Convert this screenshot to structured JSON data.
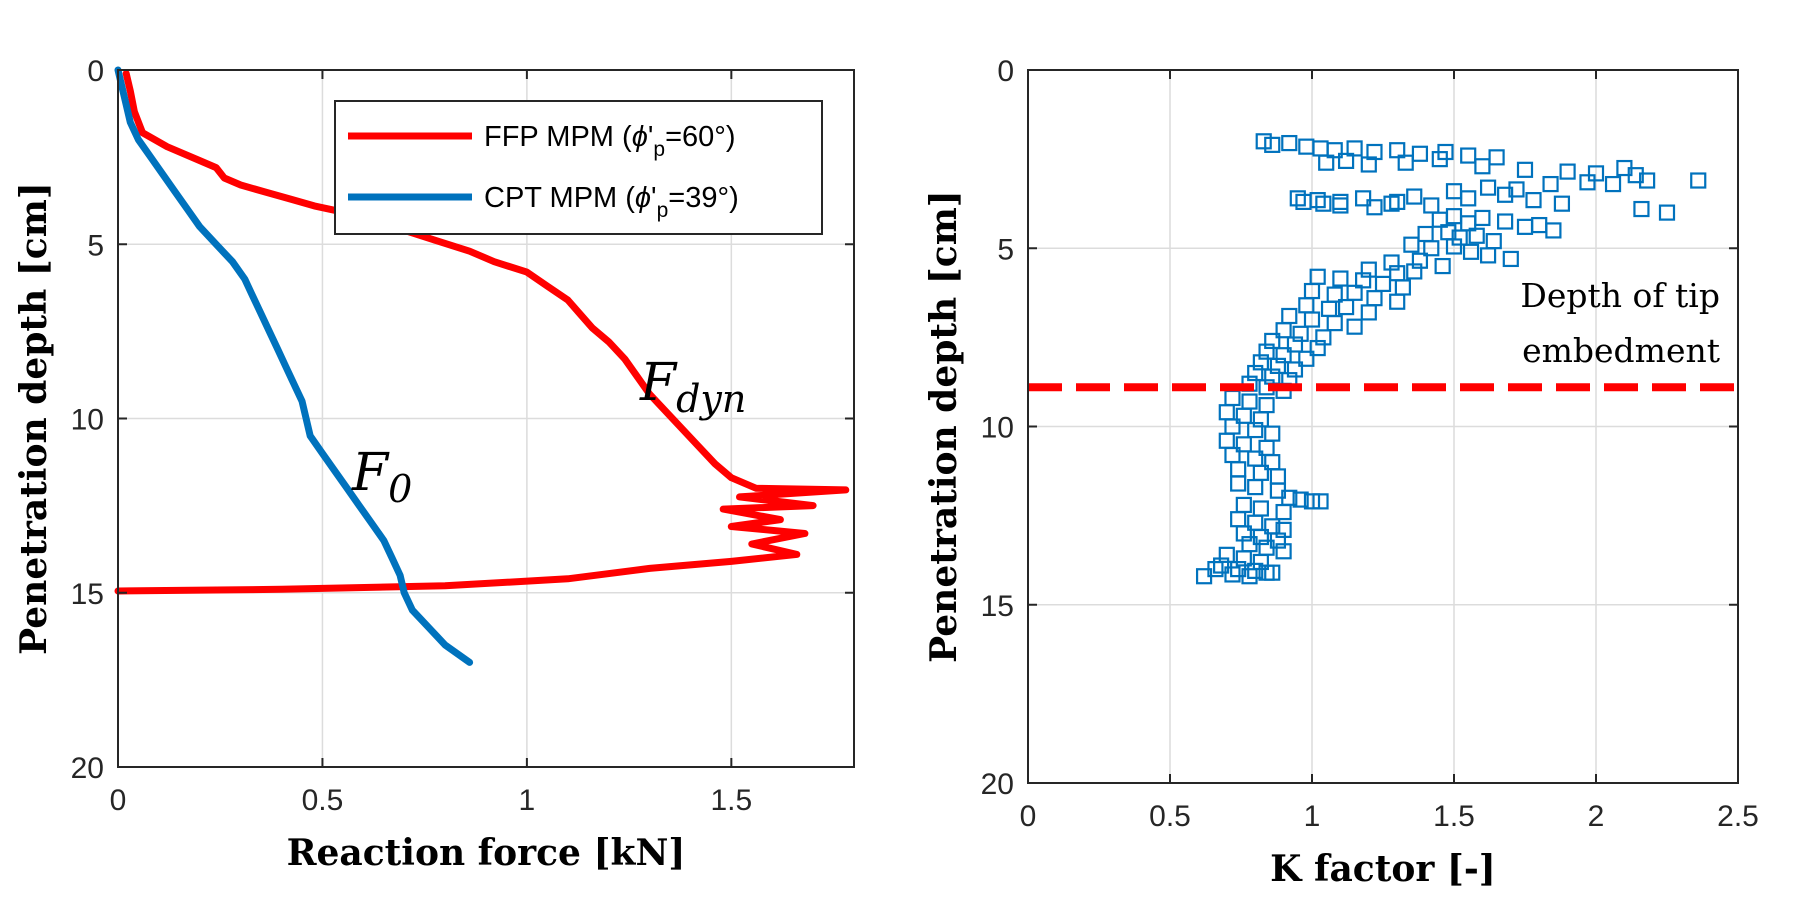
{
  "chart_data": [
    {
      "type": "line",
      "xlabel": "Reaction force [kN]",
      "ylabel": "Penetration depth [cm]",
      "xlim": [
        0,
        1.8
      ],
      "ylim": [
        0,
        20
      ],
      "y_reversed": true,
      "grid": true,
      "legend_position": "top-right",
      "x_ticks": [
        "0",
        "0.5",
        "1",
        "1.5"
      ],
      "y_ticks": [
        "0",
        "5",
        "10",
        "15",
        "20"
      ],
      "annotations": [
        {
          "base": "F",
          "sub": "dyn"
        },
        {
          "base": "F",
          "sub": "0"
        }
      ],
      "series": [
        {
          "name": "FFP MPM (ϕ'p=60°)",
          "legend_prefix": "FFP MPM (",
          "legend_phi": "ϕ",
          "legend_prime": "'",
          "legend_sub": "p",
          "legend_suffix": "=60°)",
          "color": "#ff0000",
          "points": [
            [
              0.02,
              0.1
            ],
            [
              0.03,
              0.6
            ],
            [
              0.04,
              1.2
            ],
            [
              0.06,
              1.8
            ],
            [
              0.12,
              2.2
            ],
            [
              0.2,
              2.6
            ],
            [
              0.24,
              2.8
            ],
            [
              0.26,
              3.1
            ],
            [
              0.3,
              3.3
            ],
            [
              0.36,
              3.5
            ],
            [
              0.42,
              3.7
            ],
            [
              0.48,
              3.9
            ],
            [
              0.56,
              4.1
            ],
            [
              0.62,
              4.3
            ],
            [
              0.7,
              4.6
            ],
            [
              0.78,
              4.9
            ],
            [
              0.86,
              5.2
            ],
            [
              0.92,
              5.5
            ],
            [
              1.0,
              5.8
            ],
            [
              1.05,
              6.2
            ],
            [
              1.1,
              6.6
            ],
            [
              1.13,
              7.0
            ],
            [
              1.16,
              7.4
            ],
            [
              1.2,
              7.8
            ],
            [
              1.24,
              8.3
            ],
            [
              1.27,
              8.8
            ],
            [
              1.3,
              9.3
            ],
            [
              1.34,
              9.8
            ],
            [
              1.38,
              10.3
            ],
            [
              1.42,
              10.8
            ],
            [
              1.46,
              11.3
            ],
            [
              1.5,
              11.7
            ],
            [
              1.56,
              12.0
            ],
            [
              1.78,
              12.05
            ],
            [
              1.52,
              12.25
            ],
            [
              1.7,
              12.5
            ],
            [
              1.48,
              12.6
            ],
            [
              1.62,
              12.9
            ],
            [
              1.5,
              13.1
            ],
            [
              1.68,
              13.3
            ],
            [
              1.55,
              13.6
            ],
            [
              1.66,
              13.9
            ],
            [
              1.5,
              14.1
            ],
            [
              1.3,
              14.3
            ],
            [
              1.1,
              14.6
            ],
            [
              0.8,
              14.8
            ],
            [
              0.4,
              14.9
            ],
            [
              0.0,
              14.95
            ]
          ]
        },
        {
          "name": "CPT MPM (ϕ'p=39°)",
          "legend_prefix": "CPT MPM (",
          "legend_phi": "ϕ",
          "legend_prime": "'",
          "legend_sub": "p",
          "legend_suffix": "=39°)",
          "color": "#0072bd",
          "points": [
            [
              0.0,
              0.0
            ],
            [
              0.01,
              0.5
            ],
            [
              0.02,
              1.0
            ],
            [
              0.03,
              1.5
            ],
            [
              0.05,
              2.0
            ],
            [
              0.08,
              2.5
            ],
            [
              0.11,
              3.0
            ],
            [
              0.14,
              3.5
            ],
            [
              0.17,
              4.0
            ],
            [
              0.2,
              4.5
            ],
            [
              0.24,
              5.0
            ],
            [
              0.28,
              5.5
            ],
            [
              0.31,
              6.0
            ],
            [
              0.33,
              6.5
            ],
            [
              0.35,
              7.0
            ],
            [
              0.37,
              7.5
            ],
            [
              0.39,
              8.0
            ],
            [
              0.41,
              8.5
            ],
            [
              0.43,
              9.0
            ],
            [
              0.45,
              9.5
            ],
            [
              0.46,
              10.0
            ],
            [
              0.47,
              10.5
            ],
            [
              0.5,
              11.0
            ],
            [
              0.53,
              11.5
            ],
            [
              0.56,
              12.0
            ],
            [
              0.59,
              12.5
            ],
            [
              0.62,
              13.0
            ],
            [
              0.65,
              13.5
            ],
            [
              0.67,
              14.0
            ],
            [
              0.69,
              14.5
            ],
            [
              0.7,
              15.0
            ],
            [
              0.72,
              15.5
            ],
            [
              0.76,
              16.0
            ],
            [
              0.8,
              16.5
            ],
            [
              0.86,
              17.0
            ]
          ]
        }
      ]
    },
    {
      "type": "scatter",
      "xlabel": "K factor [-]",
      "ylabel": "Penetration depth [cm]",
      "xlim": [
        0,
        2.5
      ],
      "ylim": [
        0,
        20
      ],
      "y_reversed": true,
      "grid": true,
      "x_ticks": [
        "0",
        "0.5",
        "1",
        "1.5",
        "2",
        "2.5"
      ],
      "y_ticks": [
        "0",
        "5",
        "10",
        "15",
        "20"
      ],
      "reference_line": {
        "y": 8.9,
        "color": "#ff0000",
        "style": "dashed"
      },
      "annotation_lines": [
        "Depth of tip",
        "embedment"
      ],
      "series": [
        {
          "marker": "square-open",
          "color": "#0072bd",
          "x": [
            0.83,
            0.86,
            0.92,
            0.98,
            1.03,
            1.08,
            1.15,
            1.22,
            1.3,
            1.38,
            1.47,
            1.55,
            1.65,
            1.05,
            1.12,
            1.2,
            1.33,
            1.45,
            1.6,
            1.75,
            1.9,
            2.0,
            2.1,
            2.14,
            2.36,
            0.95,
            1.02,
            1.1,
            1.18,
            1.28,
            1.36,
            1.5,
            1.62,
            1.72,
            1.84,
            1.97,
            2.06,
            2.18,
            0.97,
            1.04,
            1.1,
            1.22,
            1.3,
            1.42,
            1.55,
            1.68,
            1.78,
            1.88,
            2.16,
            2.25,
            1.45,
            1.5,
            1.55,
            1.6,
            1.68,
            1.75,
            1.8,
            1.85,
            1.4,
            1.48,
            1.52,
            1.58,
            1.64,
            1.35,
            1.42,
            1.5,
            1.56,
            1.62,
            1.7,
            1.28,
            1.38,
            1.46,
            1.2,
            1.3,
            1.36,
            1.02,
            1.1,
            1.18,
            1.25,
            1.32,
            1.0,
            1.08,
            1.15,
            1.22,
            1.3,
            0.98,
            1.06,
            1.12,
            1.2,
            0.92,
            1.0,
            1.08,
            1.15,
            0.9,
            0.96,
            1.04,
            0.86,
            0.94,
            1.02,
            0.84,
            0.9,
            0.98,
            0.82,
            0.88,
            0.94,
            0.8,
            0.86,
            0.92,
            0.78,
            0.84,
            0.9,
            0.72,
            0.78,
            0.84,
            0.7,
            0.76,
            0.82,
            0.72,
            0.8,
            0.86,
            0.7,
            0.76,
            0.84,
            0.72,
            0.8,
            0.86,
            0.74,
            0.82,
            0.88,
            0.74,
            0.8,
            0.88,
            0.92,
            0.96,
            1.0,
            1.03,
            0.76,
            0.82,
            0.9,
            0.74,
            0.8,
            0.86,
            0.9,
            0.76,
            0.82,
            0.88,
            0.78,
            0.84,
            0.9,
            0.7,
            0.76,
            0.82,
            0.68,
            0.74,
            0.8,
            0.86,
            0.66,
            0.72,
            0.78,
            0.84,
            0.62
          ],
          "y": [
            2.0,
            2.1,
            2.05,
            2.15,
            2.2,
            2.25,
            2.2,
            2.3,
            2.25,
            2.35,
            2.3,
            2.4,
            2.45,
            2.6,
            2.55,
            2.65,
            2.6,
            2.5,
            2.7,
            2.8,
            2.85,
            2.9,
            2.75,
            2.95,
            3.1,
            3.6,
            3.65,
            3.7,
            3.6,
            3.75,
            3.55,
            3.4,
            3.3,
            3.35,
            3.2,
            3.15,
            3.2,
            3.1,
            3.7,
            3.75,
            3.8,
            3.85,
            3.7,
            3.8,
            3.6,
            3.5,
            3.65,
            3.75,
            3.9,
            4.0,
            4.2,
            4.1,
            4.3,
            4.15,
            4.25,
            4.4,
            4.35,
            4.5,
            4.6,
            4.55,
            4.7,
            4.65,
            4.8,
            4.9,
            5.0,
            4.95,
            5.1,
            5.2,
            5.3,
            5.4,
            5.35,
            5.5,
            5.6,
            5.7,
            5.65,
            5.8,
            5.85,
            5.9,
            6.0,
            6.1,
            6.2,
            6.3,
            6.25,
            6.4,
            6.5,
            6.6,
            6.7,
            6.65,
            6.8,
            6.9,
            7.0,
            7.1,
            7.2,
            7.3,
            7.4,
            7.5,
            7.6,
            7.7,
            7.8,
            7.9,
            8.0,
            8.1,
            8.2,
            8.3,
            8.4,
            8.5,
            8.6,
            8.7,
            8.8,
            8.9,
            9.0,
            9.2,
            9.3,
            9.4,
            9.6,
            9.7,
            9.8,
            10.0,
            10.1,
            10.2,
            10.4,
            10.5,
            10.6,
            10.8,
            10.9,
            11.0,
            11.2,
            11.3,
            11.4,
            11.6,
            11.7,
            11.8,
            12.0,
            12.05,
            12.1,
            12.1,
            12.2,
            12.3,
            12.4,
            12.6,
            12.7,
            12.8,
            12.9,
            13.0,
            13.1,
            13.2,
            13.3,
            13.4,
            13.5,
            13.6,
            13.7,
            13.8,
            13.9,
            14.0,
            14.05,
            14.1,
            14.0,
            14.15,
            14.2,
            14.1,
            14.2
          ]
        }
      ]
    }
  ]
}
